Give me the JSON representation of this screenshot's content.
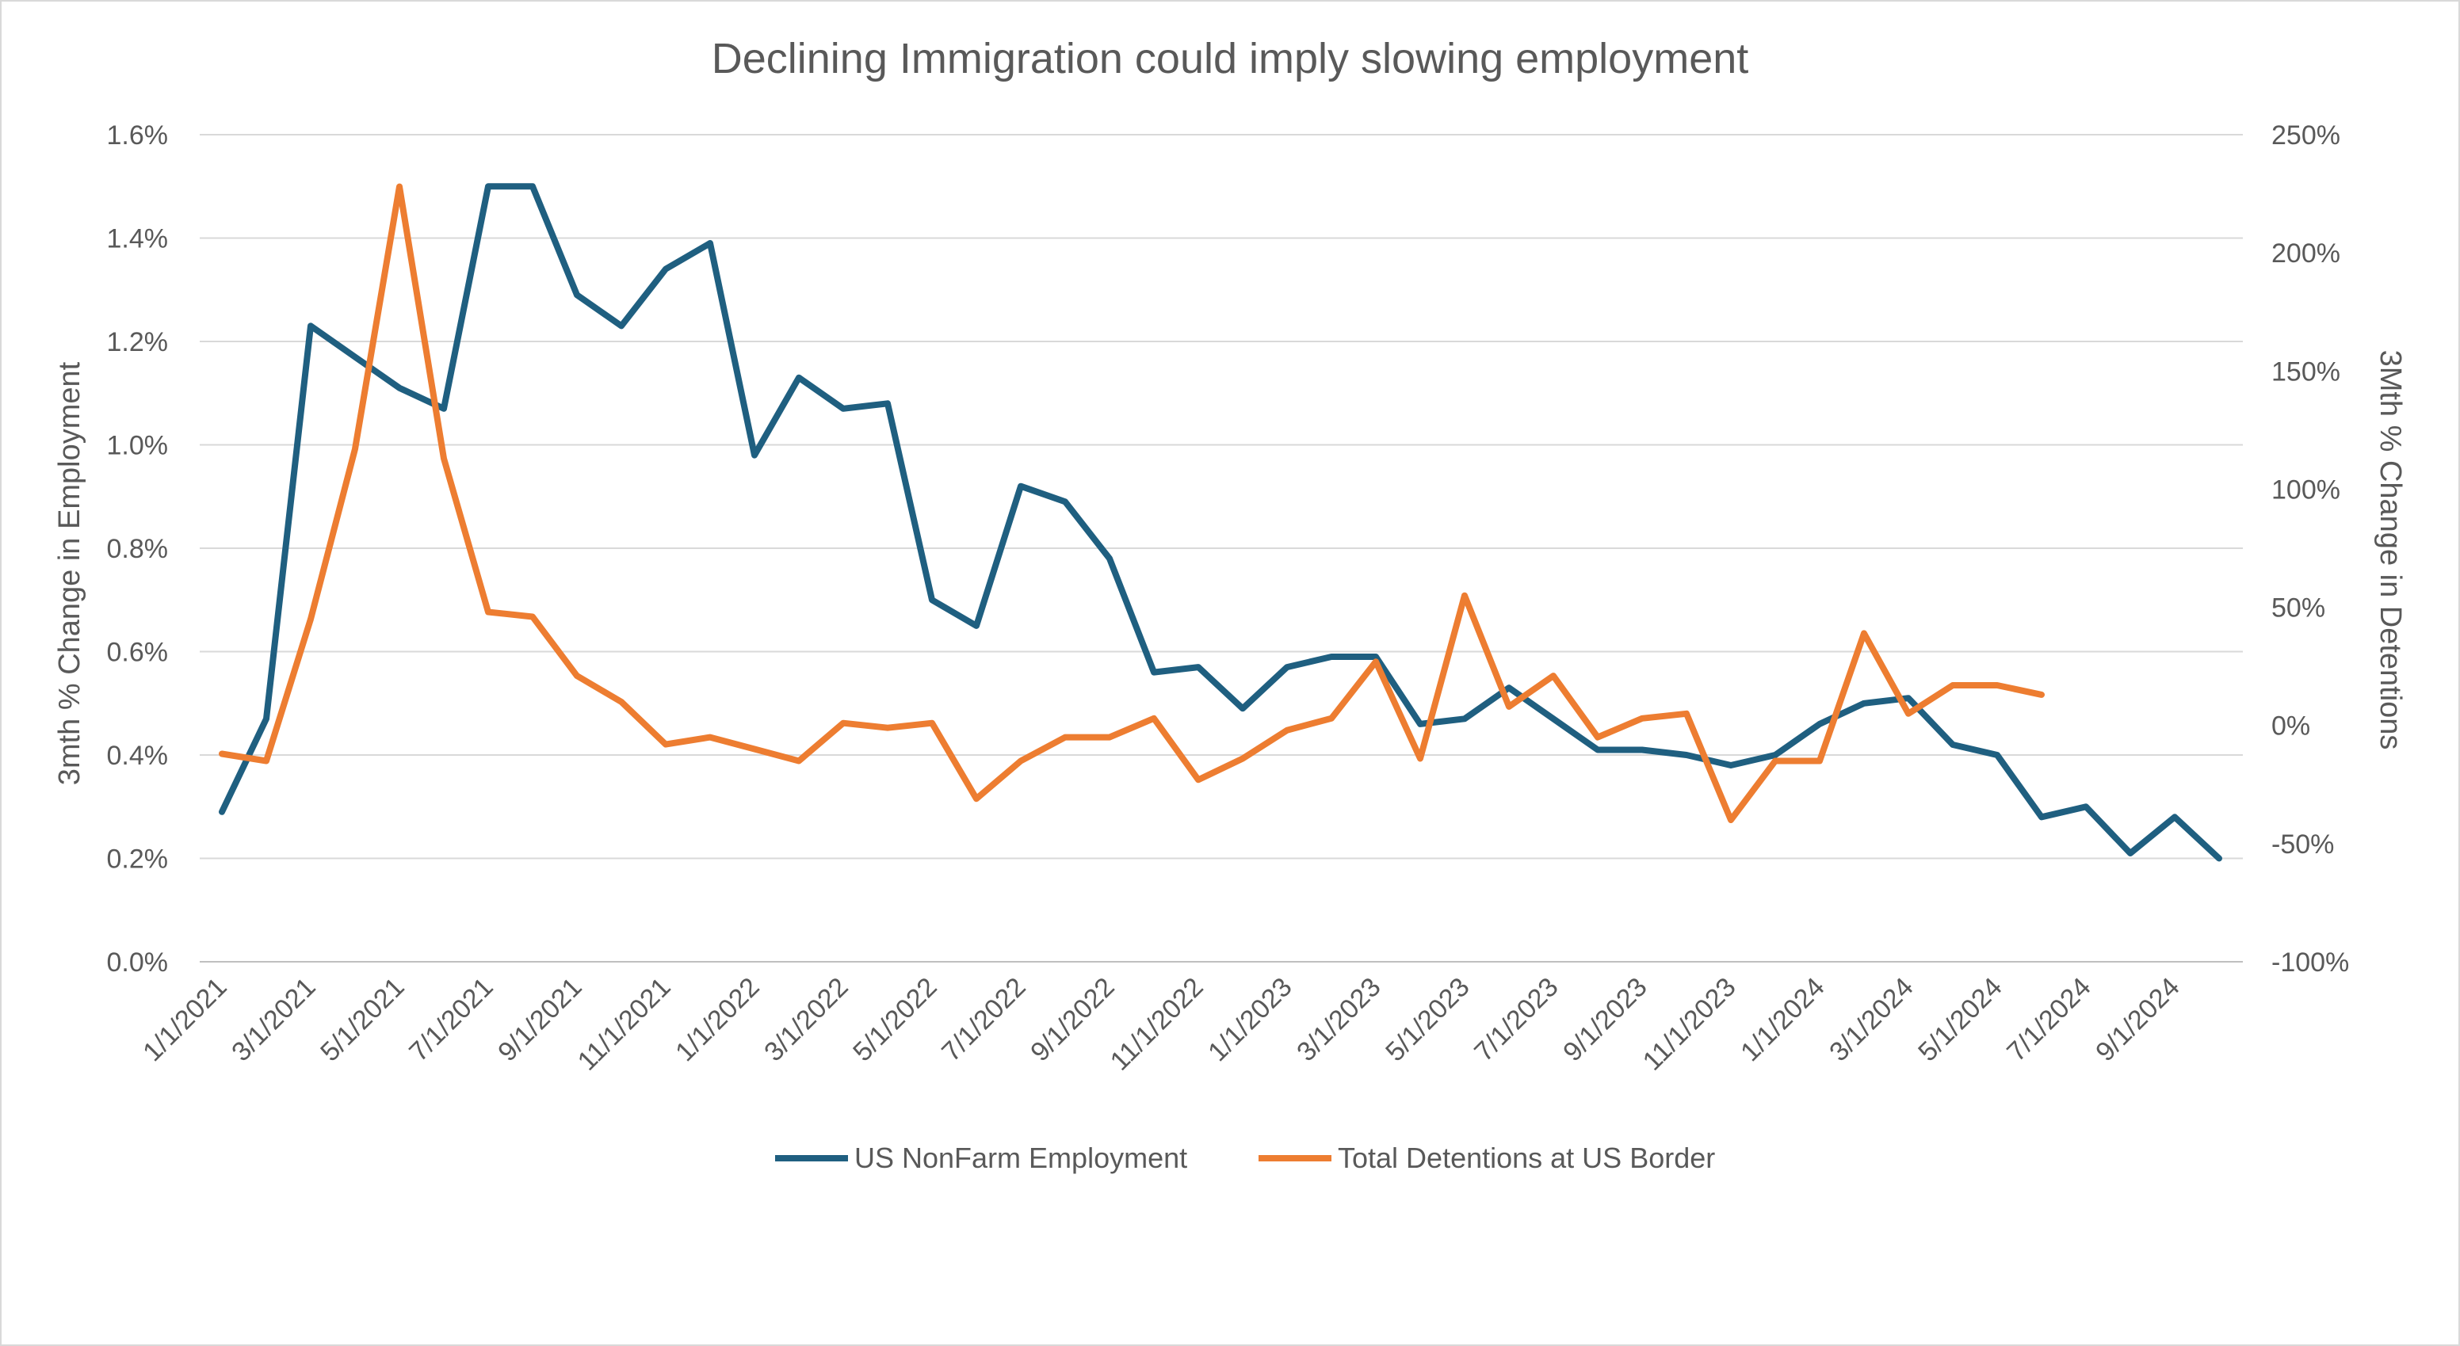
{
  "chart_data": {
    "type": "line",
    "title": "Declining Immigration could imply slowing employment",
    "y_left_label": "3mth % Change in Employment",
    "y_right_label": "3Mth % Change in Detentions",
    "y_left_ticks": [
      "0.0%",
      "0.2%",
      "0.4%",
      "0.6%",
      "0.8%",
      "1.0%",
      "1.2%",
      "1.4%",
      "1.6%"
    ],
    "y_right_ticks": [
      "-100%",
      "-50%",
      "0%",
      "50%",
      "100%",
      "150%",
      "200%",
      "250%"
    ],
    "y_left_range": [
      0,
      1.6
    ],
    "y_right_range": [
      -100,
      250
    ],
    "x_tick_labels": [
      "1/1/2021",
      "3/1/2021",
      "5/1/2021",
      "7/1/2021",
      "9/1/2021",
      "11/1/2021",
      "1/1/2022",
      "3/1/2022",
      "5/1/2022",
      "7/1/2022",
      "9/1/2022",
      "11/1/2022",
      "1/1/2023",
      "3/1/2023",
      "5/1/2023",
      "7/1/2023",
      "9/1/2023",
      "11/1/2023",
      "1/1/2024",
      "3/1/2024",
      "5/1/2024",
      "7/1/2024",
      "9/1/2024"
    ],
    "x_months": [
      "2021-01",
      "2021-02",
      "2021-03",
      "2021-04",
      "2021-05",
      "2021-06",
      "2021-07",
      "2021-08",
      "2021-09",
      "2021-10",
      "2021-11",
      "2021-12",
      "2022-01",
      "2022-02",
      "2022-03",
      "2022-04",
      "2022-05",
      "2022-06",
      "2022-07",
      "2022-08",
      "2022-09",
      "2022-10",
      "2022-11",
      "2022-12",
      "2023-01",
      "2023-02",
      "2023-03",
      "2023-04",
      "2023-05",
      "2023-06",
      "2023-07",
      "2023-08",
      "2023-09",
      "2023-10",
      "2023-11",
      "2023-12",
      "2024-01",
      "2024-02",
      "2024-03",
      "2024-04",
      "2024-05",
      "2024-06",
      "2024-07",
      "2024-08",
      "2024-09",
      "2024-10"
    ],
    "grid": "horizontal",
    "legend_position": "bottom",
    "series": [
      {
        "name": "US NonFarm Employment",
        "axis": "left",
        "color": "#1f5f80",
        "values": [
          0.29,
          0.47,
          1.23,
          1.17,
          1.11,
          1.07,
          1.5,
          1.5,
          1.29,
          1.23,
          1.34,
          1.39,
          0.98,
          1.13,
          1.07,
          1.08,
          0.7,
          0.65,
          0.92,
          0.89,
          0.78,
          0.56,
          0.57,
          0.49,
          0.57,
          0.59,
          0.59,
          0.46,
          0.47,
          0.53,
          0.47,
          0.41,
          0.41,
          0.4,
          0.38,
          0.4,
          0.46,
          0.5,
          0.51,
          0.42,
          0.4,
          0.28,
          0.3,
          0.21,
          0.28,
          0.2
        ]
      },
      {
        "name": "Total Detentions at US Border",
        "axis": "right",
        "color": "#ed7d31",
        "values": [
          -12,
          -15,
          45,
          117,
          228,
          113,
          48,
          46,
          21,
          10,
          -8,
          -5,
          -10,
          -15,
          1,
          -1,
          1,
          -31,
          -15,
          -5,
          -5,
          3,
          -23,
          -14,
          -2,
          3,
          27,
          -14,
          55,
          8,
          21,
          -5,
          3,
          5,
          -40,
          -15,
          -15,
          39,
          5,
          17,
          17,
          13
        ]
      }
    ]
  }
}
